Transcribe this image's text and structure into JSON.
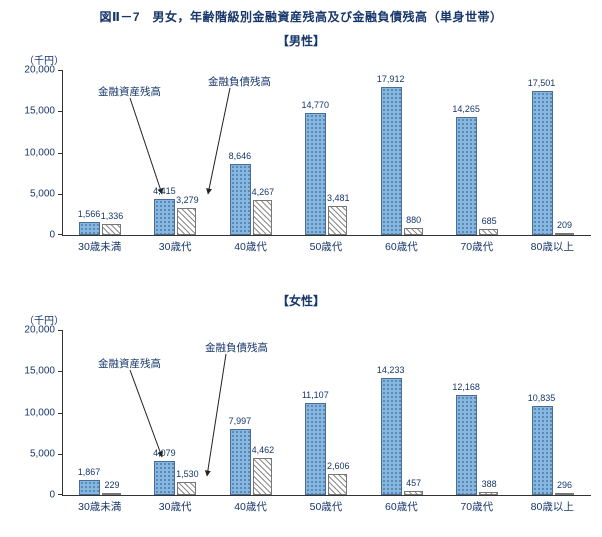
{
  "title": "図Ⅱ－7　男女，年齢階級別金融資産残高及び金融負債残高（単身世帯）",
  "chart_data": [
    {
      "type": "bar",
      "subtitle": "【男性】",
      "unit": "（千円）",
      "categories": [
        "30歳未満",
        "30歳代",
        "40歳代",
        "50歳代",
        "60歳代",
        "70歳代",
        "80歳以上"
      ],
      "series": [
        {
          "name": "金融資産残高",
          "values": [
            1566,
            4415,
            8646,
            14770,
            17912,
            14265,
            17501
          ],
          "labels": [
            "1,566",
            "4,415",
            "8,646",
            "14,770",
            "17,912",
            "14,265",
            "17,501"
          ]
        },
        {
          "name": "金融負債残高",
          "values": [
            1336,
            3279,
            4267,
            3481,
            880,
            685,
            209
          ],
          "labels": [
            "1,336",
            "3,279",
            "4,267",
            "3,481",
            "880",
            "685",
            "209"
          ]
        }
      ],
      "ylim": [
        0,
        20000
      ],
      "yticks": [
        "20,000",
        "15,000",
        "10,000",
        "5,000",
        "0"
      ],
      "legend_position": "annotated-arrows",
      "grid": false,
      "annotations": [
        {
          "text": "金融資産残高"
        },
        {
          "text": "金融負債残高"
        }
      ]
    },
    {
      "type": "bar",
      "subtitle": "【女性】",
      "unit": "（千円）",
      "categories": [
        "30歳未満",
        "30歳代",
        "40歳代",
        "50歳代",
        "60歳代",
        "70歳代",
        "80歳以上"
      ],
      "series": [
        {
          "name": "金融資産残高",
          "values": [
            1867,
            4079,
            7997,
            11107,
            14233,
            12168,
            10835
          ],
          "labels": [
            "1,867",
            "4,079",
            "7,997",
            "11,107",
            "14,233",
            "12,168",
            "10,835"
          ]
        },
        {
          "name": "金融負債残高",
          "values": [
            229,
            1530,
            4462,
            2606,
            457,
            388,
            296
          ],
          "labels": [
            "229",
            "1,530",
            "4,462",
            "2,606",
            "457",
            "388",
            "296"
          ]
        }
      ],
      "ylim": [
        0,
        20000
      ],
      "yticks": [
        "20,000",
        "15,000",
        "10,000",
        "5,000",
        "0"
      ],
      "legend_position": "annotated-arrows",
      "grid": false,
      "annotations": [
        {
          "text": "金融資産残高"
        },
        {
          "text": "金融負債残高"
        }
      ]
    }
  ],
  "colors": {
    "text_navy": "#17366b",
    "asset_bar_fill": "#85b8e0",
    "asset_bar_dot": "#3d5f8c",
    "liability_hatch": "#8a8a8a",
    "axis": "#333333"
  }
}
